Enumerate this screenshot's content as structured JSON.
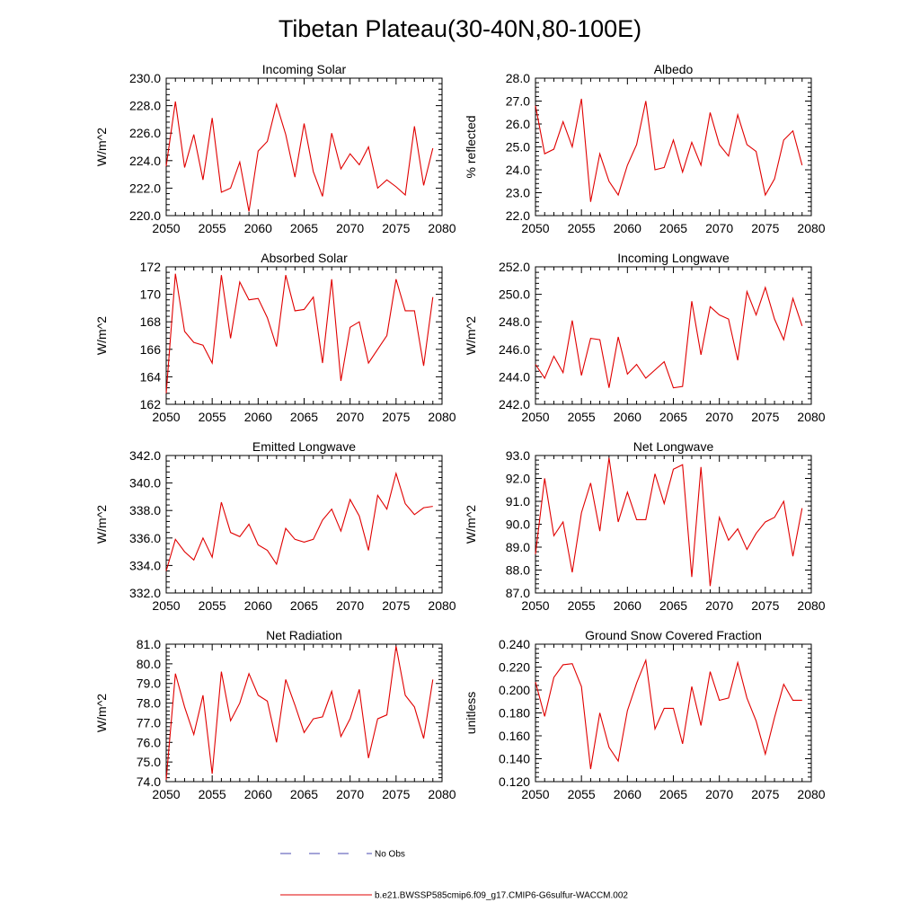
{
  "figure_title": "Tibetan Plateau(30-40N,80-100E)",
  "line_color": "#e00000",
  "obs_color": "#4a4ab0",
  "legend": [
    {
      "label": "No Obs",
      "style": "dashed",
      "color": "#4a4ab0"
    },
    {
      "label": "b.e21.BWSSP585cmip6.f09_g17.CMIP6-G6sulfur-WACCM.002",
      "style": "solid",
      "color": "#e00000"
    }
  ],
  "chart_data": [
    {
      "type": "line",
      "title": "Incoming Solar",
      "ylabel": "W/m^2",
      "xlim": [
        2050,
        2080
      ],
      "ylim": [
        220,
        230
      ],
      "xticks": [
        2050,
        2055,
        2060,
        2065,
        2070,
        2075,
        2080
      ],
      "yticks": [
        220,
        222,
        224,
        226,
        228,
        230
      ],
      "yticklabels": [
        "220.0",
        "222.0",
        "224.0",
        "226.0",
        "228.0",
        "230.0"
      ],
      "x": [
        2050,
        2051,
        2052,
        2053,
        2054,
        2055,
        2056,
        2057,
        2058,
        2059,
        2060,
        2061,
        2062,
        2063,
        2064,
        2065,
        2066,
        2067,
        2068,
        2069,
        2070,
        2071,
        2072,
        2073,
        2074,
        2075,
        2076,
        2077,
        2078,
        2079
      ],
      "series": [
        {
          "name": "b.e21.BWSSP585cmip6.f09_g17.CMIP6-G6sulfur-WACCM.002",
          "values": [
            223.6,
            228.3,
            223.5,
            225.9,
            222.6,
            227.1,
            221.7,
            222.0,
            223.9,
            220.3,
            224.7,
            225.4,
            228.1,
            225.9,
            222.8,
            226.7,
            223.2,
            221.4,
            226.0,
            223.4,
            224.5,
            223.7,
            225.0,
            222.0,
            222.6,
            222.1,
            221.5,
            226.5,
            222.2,
            224.9
          ]
        }
      ]
    },
    {
      "type": "line",
      "title": "Albedo",
      "ylabel": "% reflected",
      "xlim": [
        2050,
        2080
      ],
      "ylim": [
        22,
        28
      ],
      "xticks": [
        2050,
        2055,
        2060,
        2065,
        2070,
        2075,
        2080
      ],
      "yticks": [
        22,
        23,
        24,
        25,
        26,
        27,
        28
      ],
      "yticklabels": [
        "22.0",
        "23.0",
        "24.0",
        "25.0",
        "26.0",
        "27.0",
        "28.0"
      ],
      "x": [
        2050,
        2051,
        2052,
        2053,
        2054,
        2055,
        2056,
        2057,
        2058,
        2059,
        2060,
        2061,
        2062,
        2063,
        2064,
        2065,
        2066,
        2067,
        2068,
        2069,
        2070,
        2071,
        2072,
        2073,
        2074,
        2075,
        2076,
        2077,
        2078,
        2079
      ],
      "series": [
        {
          "name": "b.e21.BWSSP585cmip6.f09_g17.CMIP6-G6sulfur-WACCM.002",
          "values": [
            26.8,
            24.7,
            24.9,
            26.1,
            25.0,
            27.1,
            22.6,
            24.7,
            23.5,
            22.9,
            24.2,
            25.1,
            27.0,
            24.0,
            24.1,
            25.3,
            23.9,
            25.2,
            24.2,
            26.5,
            25.1,
            24.6,
            26.4,
            25.1,
            24.8,
            22.9,
            23.6,
            25.3,
            25.7,
            24.2
          ]
        }
      ]
    },
    {
      "type": "line",
      "title": "Absorbed Solar",
      "ylabel": "W/m^2",
      "xlim": [
        2050,
        2080
      ],
      "ylim": [
        162,
        172
      ],
      "xticks": [
        2050,
        2055,
        2060,
        2065,
        2070,
        2075,
        2080
      ],
      "yticks": [
        162,
        164,
        166,
        168,
        170,
        172
      ],
      "yticklabels": [
        "162",
        "164",
        "166",
        "168",
        "170",
        "172"
      ],
      "x": [
        2050,
        2051,
        2052,
        2053,
        2054,
        2055,
        2056,
        2057,
        2058,
        2059,
        2060,
        2061,
        2062,
        2063,
        2064,
        2065,
        2066,
        2067,
        2068,
        2069,
        2070,
        2071,
        2072,
        2073,
        2074,
        2075,
        2076,
        2077,
        2078,
        2079
      ],
      "series": [
        {
          "name": "b.e21.BWSSP585cmip6.f09_g17.CMIP6-G6sulfur-WACCM.002",
          "values": [
            162.8,
            171.5,
            167.3,
            166.5,
            166.3,
            165.0,
            171.4,
            166.8,
            170.9,
            169.6,
            169.7,
            168.3,
            166.2,
            171.4,
            168.8,
            168.9,
            169.8,
            165.0,
            171.1,
            163.7,
            167.6,
            168.0,
            165.0,
            166.0,
            167.0,
            171.1,
            168.8,
            168.8,
            164.8,
            169.8
          ]
        }
      ]
    },
    {
      "type": "line",
      "title": "Incoming Longwave",
      "ylabel": "W/m^2",
      "xlim": [
        2050,
        2080
      ],
      "ylim": [
        242,
        252
      ],
      "xticks": [
        2050,
        2055,
        2060,
        2065,
        2070,
        2075,
        2080
      ],
      "yticks": [
        242,
        244,
        246,
        248,
        250,
        252
      ],
      "yticklabels": [
        "242.0",
        "244.0",
        "246.0",
        "248.0",
        "250.0",
        "252.0"
      ],
      "x": [
        2050,
        2051,
        2052,
        2053,
        2054,
        2055,
        2056,
        2057,
        2058,
        2059,
        2060,
        2061,
        2062,
        2063,
        2064,
        2065,
        2066,
        2067,
        2068,
        2069,
        2070,
        2071,
        2072,
        2073,
        2074,
        2075,
        2076,
        2077,
        2078,
        2079
      ],
      "series": [
        {
          "name": "b.e21.BWSSP585cmip6.f09_g17.CMIP6-G6sulfur-WACCM.002",
          "values": [
            244.9,
            243.9,
            245.5,
            244.3,
            248.1,
            244.1,
            246.8,
            246.7,
            243.2,
            246.9,
            244.2,
            244.9,
            243.9,
            244.5,
            245.1,
            243.2,
            243.3,
            249.5,
            245.6,
            249.1,
            248.5,
            248.2,
            245.2,
            250.2,
            248.5,
            250.5,
            248.2,
            246.7,
            249.7,
            247.7
          ]
        }
      ]
    },
    {
      "type": "line",
      "title": "Emitted Longwave",
      "ylabel": "W/m^2",
      "xlim": [
        2050,
        2080
      ],
      "ylim": [
        332,
        342
      ],
      "xticks": [
        2050,
        2055,
        2060,
        2065,
        2070,
        2075,
        2080
      ],
      "yticks": [
        332,
        334,
        336,
        338,
        340,
        342
      ],
      "yticklabels": [
        "332.0",
        "334.0",
        "336.0",
        "338.0",
        "340.0",
        "342.0"
      ],
      "x": [
        2050,
        2051,
        2052,
        2053,
        2054,
        2055,
        2056,
        2057,
        2058,
        2059,
        2060,
        2061,
        2062,
        2063,
        2064,
        2065,
        2066,
        2067,
        2068,
        2069,
        2070,
        2071,
        2072,
        2073,
        2074,
        2075,
        2076,
        2077,
        2078,
        2079
      ],
      "series": [
        {
          "name": "b.e21.BWSSP585cmip6.f09_g17.CMIP6-G6sulfur-WACCM.002",
          "values": [
            333.6,
            335.9,
            335.0,
            334.4,
            336.0,
            334.6,
            338.6,
            336.4,
            336.1,
            337.0,
            335.5,
            335.1,
            334.1,
            336.7,
            335.9,
            335.7,
            335.9,
            337.3,
            338.1,
            336.5,
            338.8,
            337.6,
            335.1,
            339.1,
            338.1,
            340.7,
            338.5,
            337.7,
            338.2,
            338.3
          ]
        }
      ]
    },
    {
      "type": "line",
      "title": "Net Longwave",
      "ylabel": "W/m^2",
      "xlim": [
        2050,
        2080
      ],
      "ylim": [
        87,
        93
      ],
      "xticks": [
        2050,
        2055,
        2060,
        2065,
        2070,
        2075,
        2080
      ],
      "yticks": [
        87,
        88,
        89,
        90,
        91,
        92,
        93
      ],
      "yticklabels": [
        "87.0",
        "88.0",
        "89.0",
        "90.0",
        "91.0",
        "92.0",
        "93.0"
      ],
      "x": [
        2050,
        2051,
        2052,
        2053,
        2054,
        2055,
        2056,
        2057,
        2058,
        2059,
        2060,
        2061,
        2062,
        2063,
        2064,
        2065,
        2066,
        2067,
        2068,
        2069,
        2070,
        2071,
        2072,
        2073,
        2074,
        2075,
        2076,
        2077,
        2078,
        2079
      ],
      "series": [
        {
          "name": "b.e21.BWSSP585cmip6.f09_g17.CMIP6-G6sulfur-WACCM.002",
          "values": [
            88.7,
            92.0,
            89.5,
            90.1,
            87.9,
            90.5,
            91.8,
            89.7,
            92.9,
            90.1,
            91.4,
            90.2,
            90.2,
            92.2,
            90.9,
            92.4,
            92.6,
            87.7,
            92.5,
            87.3,
            90.3,
            89.3,
            89.8,
            88.9,
            89.6,
            90.1,
            90.3,
            91.0,
            88.6,
            90.7
          ]
        }
      ]
    },
    {
      "type": "line",
      "title": "Net Radiation",
      "ylabel": "W/m^2",
      "xlim": [
        2050,
        2080
      ],
      "ylim": [
        74,
        81
      ],
      "xticks": [
        2050,
        2055,
        2060,
        2065,
        2070,
        2075,
        2080
      ],
      "yticks": [
        74,
        75,
        76,
        77,
        78,
        79,
        80,
        81
      ],
      "yticklabels": [
        "74.0",
        "75.0",
        "76.0",
        "77.0",
        "78.0",
        "79.0",
        "80.0",
        "81.0"
      ],
      "x": [
        2050,
        2051,
        2052,
        2053,
        2054,
        2055,
        2056,
        2057,
        2058,
        2059,
        2060,
        2061,
        2062,
        2063,
        2064,
        2065,
        2066,
        2067,
        2068,
        2069,
        2070,
        2071,
        2072,
        2073,
        2074,
        2075,
        2076,
        2077,
        2078,
        2079
      ],
      "series": [
        {
          "name": "b.e21.BWSSP585cmip6.f09_g17.CMIP6-G6sulfur-WACCM.002",
          "values": [
            74.1,
            79.5,
            77.8,
            76.4,
            78.4,
            74.4,
            79.6,
            77.1,
            78.0,
            79.5,
            78.4,
            78.1,
            76.0,
            79.2,
            77.9,
            76.5,
            77.2,
            77.3,
            78.6,
            76.3,
            77.2,
            78.7,
            75.2,
            77.2,
            77.4,
            80.9,
            78.4,
            77.8,
            76.2,
            79.2
          ]
        }
      ]
    },
    {
      "type": "line",
      "title": "Ground Snow Covered Fraction",
      "ylabel": "unitless",
      "xlim": [
        2050,
        2080
      ],
      "ylim": [
        0.12,
        0.24
      ],
      "xticks": [
        2050,
        2055,
        2060,
        2065,
        2070,
        2075,
        2080
      ],
      "yticks": [
        0.12,
        0.14,
        0.16,
        0.18,
        0.2,
        0.22,
        0.24
      ],
      "yticklabels": [
        "0.120",
        "0.140",
        "0.160",
        "0.180",
        "0.200",
        "0.220",
        "0.240"
      ],
      "x": [
        2050,
        2051,
        2052,
        2053,
        2054,
        2055,
        2056,
        2057,
        2058,
        2059,
        2060,
        2061,
        2062,
        2063,
        2064,
        2065,
        2066,
        2067,
        2068,
        2069,
        2070,
        2071,
        2072,
        2073,
        2074,
        2075,
        2076,
        2077,
        2078,
        2079
      ],
      "series": [
        {
          "name": "b.e21.BWSSP585cmip6.f09_g17.CMIP6-G6sulfur-WACCM.002",
          "values": [
            0.207,
            0.177,
            0.211,
            0.222,
            0.223,
            0.203,
            0.131,
            0.18,
            0.15,
            0.138,
            0.182,
            0.206,
            0.226,
            0.166,
            0.184,
            0.184,
            0.153,
            0.203,
            0.169,
            0.216,
            0.191,
            0.193,
            0.224,
            0.193,
            0.173,
            0.144,
            0.176,
            0.205,
            0.191,
            0.191
          ]
        }
      ]
    }
  ]
}
